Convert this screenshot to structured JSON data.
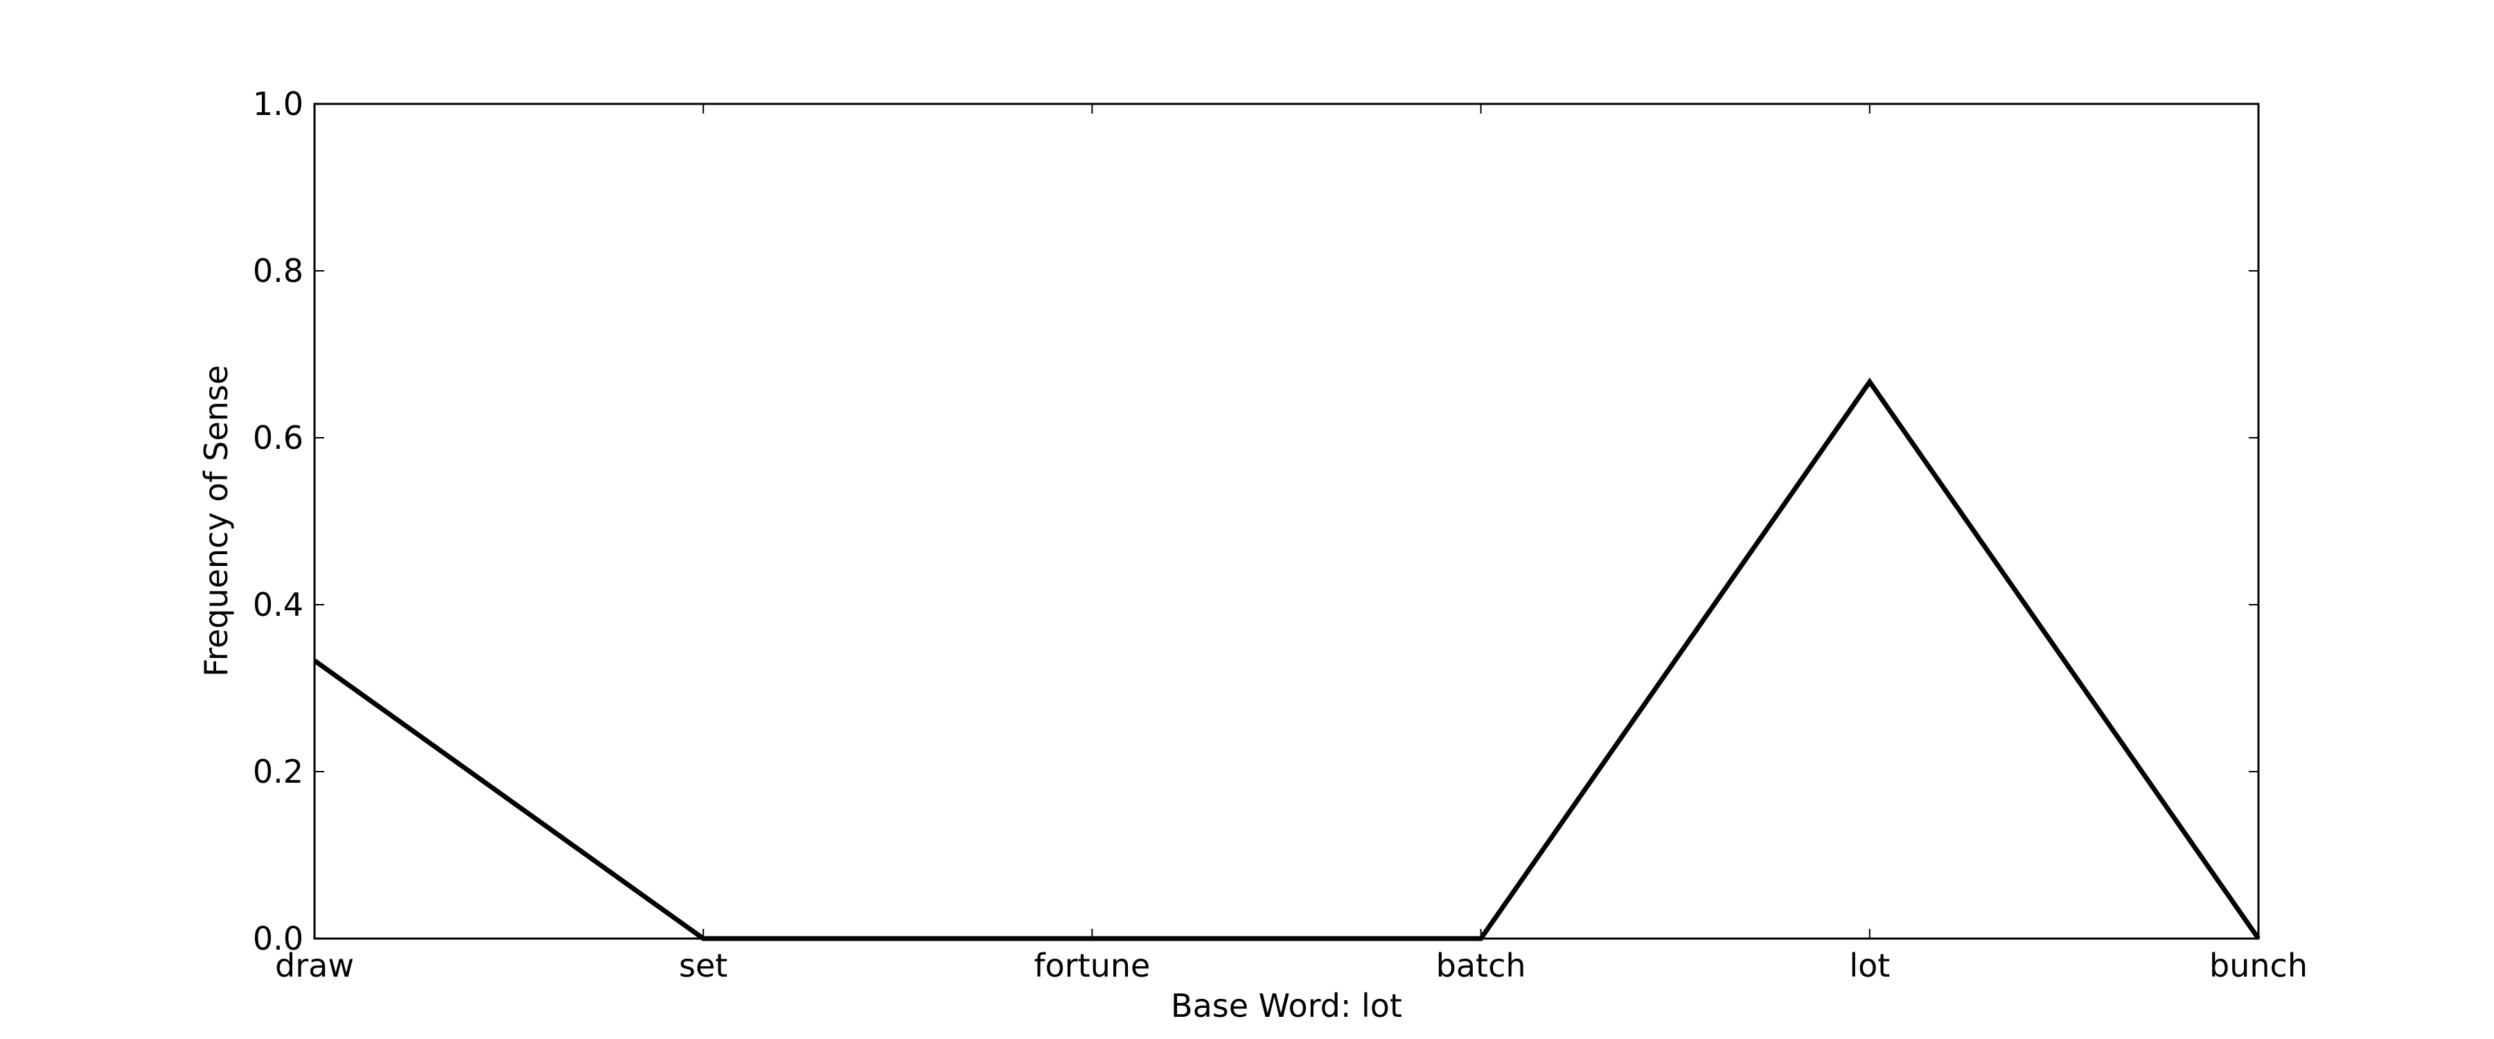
{
  "chart_data": {
    "type": "line",
    "categories": [
      "draw",
      "set",
      "fortune",
      "batch",
      "lot",
      "bunch"
    ],
    "series": [
      {
        "values": [
          0.333,
          0.0,
          0.0,
          0.0,
          0.667,
          0.0
        ]
      }
    ],
    "xlabel": "Base Word: lot",
    "ylabel": "Frequency of Sense",
    "ylim": [
      0.0,
      1.0
    ],
    "yticks": [
      "0.0",
      "0.2",
      "0.4",
      "0.6",
      "0.8",
      "1.0"
    ],
    "grid": false,
    "line_color": "#000000"
  }
}
